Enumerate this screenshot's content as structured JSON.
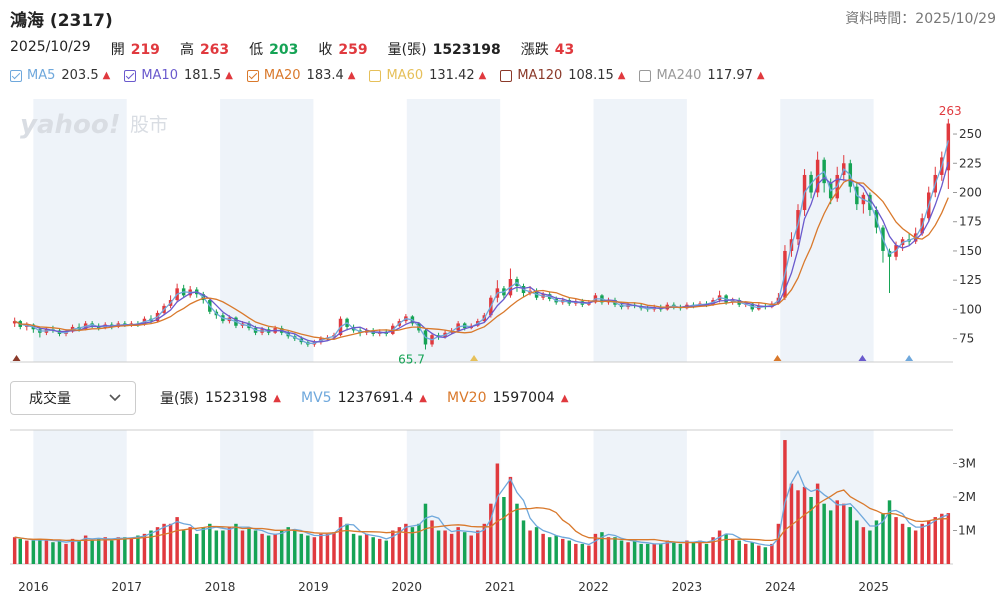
{
  "header": {
    "title": "鴻海 (2317)",
    "data_time_label": "資料時間：2025/10/29"
  },
  "quote": {
    "date": "2025/10/29",
    "open_label": "開",
    "open": "219",
    "high_label": "高",
    "high": "263",
    "low_label": "低",
    "low": "203",
    "close_label": "收",
    "close": "259",
    "volume_label": "量(張)",
    "volume": "1523198",
    "change_label": "漲跌",
    "change": "43"
  },
  "ma": [
    {
      "name": "MA5",
      "value": "203.5",
      "color": "#6fa8dc",
      "checked": true
    },
    {
      "name": "MA10",
      "value": "181.5",
      "color": "#6a5acd",
      "checked": true
    },
    {
      "name": "MA20",
      "value": "183.4",
      "color": "#d9792c",
      "checked": true
    },
    {
      "name": "MA60",
      "value": "131.42",
      "color": "#e6c05a",
      "checked": false
    },
    {
      "name": "MA120",
      "value": "108.15",
      "color": "#8b3a2a",
      "checked": false
    },
    {
      "name": "MA240",
      "value": "117.97",
      "color": "#999999",
      "checked": false
    }
  ],
  "up_arrow": "▲",
  "volume_panel": {
    "select_label": "成交量",
    "vol_label": "量(張)",
    "vol_value": "1523198",
    "mv5_label": "MV5",
    "mv5_value": "1237691.4",
    "mv5_color": "#6fa8dc",
    "mv20_label": "MV20",
    "mv20_value": "1597004",
    "mv20_color": "#d9792c"
  },
  "watermark": {
    "brand": "yahoo!",
    "suffix": "股市"
  },
  "colors": {
    "up": "#e0393e",
    "down": "#15a355",
    "band": "#eef3f9"
  },
  "chart_data": {
    "type": "candlestick",
    "title": "鴻海 (2317)",
    "price_axis": {
      "ticks": [
        75,
        100,
        125,
        150,
        175,
        200,
        225,
        250
      ],
      "ylim": [
        55,
        268
      ]
    },
    "volume_axis": {
      "ticks": [
        "1M",
        "2M",
        "3M"
      ],
      "tick_values": [
        1,
        2,
        3
      ],
      "ylim": [
        0,
        4.0
      ],
      "unit": "M"
    },
    "x_tick_labels": [
      "2016",
      "2017",
      "2018",
      "2019",
      "2020",
      "2021",
      "2022",
      "2023",
      "2024",
      "2025"
    ],
    "x_tick_positions": [
      2016,
      2017,
      2018,
      2019,
      2020,
      2021,
      2022,
      2023,
      2024,
      2025
    ],
    "xlim": [
      2015.75,
      2025.85
    ],
    "annotations": [
      {
        "text": "263",
        "x": 2025.82,
        "y": 263,
        "color": "#e0393e"
      },
      {
        "text": "65.7",
        "x": 2020.05,
        "y": 65.7,
        "color": "#15a355"
      }
    ],
    "markers": [
      {
        "x": 2015.82,
        "color": "#8b3a2a"
      },
      {
        "x": 2020.72,
        "color": "#e6c05a"
      },
      {
        "x": 2023.97,
        "color": "#d9792c"
      },
      {
        "x": 2024.88,
        "color": "#6a5acd"
      },
      {
        "x": 2025.38,
        "color": "#6fa8dc"
      }
    ],
    "candles": [
      [
        2015.8,
        88,
        90,
        93,
        85,
        0.8
      ],
      [
        2015.86,
        90,
        85,
        91,
        83,
        0.75
      ],
      [
        2015.93,
        85,
        87,
        89,
        82,
        0.7
      ],
      [
        2016.0,
        87,
        83,
        88,
        80,
        0.7
      ],
      [
        2016.07,
        83,
        80,
        85,
        76,
        0.75
      ],
      [
        2016.14,
        80,
        83,
        85,
        78,
        0.7
      ],
      [
        2016.21,
        83,
        82,
        86,
        80,
        0.65
      ],
      [
        2016.28,
        82,
        79,
        84,
        77,
        0.7
      ],
      [
        2016.35,
        79,
        81,
        83,
        77,
        0.6
      ],
      [
        2016.42,
        81,
        85,
        87,
        80,
        0.75
      ],
      [
        2016.49,
        85,
        83,
        88,
        81,
        0.7
      ],
      [
        2016.56,
        83,
        88,
        90,
        82,
        0.85
      ],
      [
        2016.63,
        88,
        86,
        90,
        84,
        0.7
      ],
      [
        2016.7,
        86,
        84,
        88,
        82,
        0.75
      ],
      [
        2016.77,
        84,
        87,
        89,
        83,
        0.8
      ],
      [
        2016.84,
        87,
        85,
        89,
        83,
        0.7
      ],
      [
        2016.91,
        85,
        88,
        90,
        84,
        0.8
      ],
      [
        2016.98,
        88,
        86,
        90,
        85,
        0.8
      ],
      [
        2017.05,
        86,
        88,
        90,
        85,
        0.75
      ],
      [
        2017.12,
        88,
        87,
        90,
        85,
        0.85
      ],
      [
        2017.19,
        87,
        92,
        94,
        86,
        0.9
      ],
      [
        2017.26,
        92,
        90,
        95,
        88,
        1.0
      ],
      [
        2017.33,
        90,
        97,
        99,
        89,
        1.1
      ],
      [
        2017.4,
        97,
        103,
        105,
        95,
        1.2
      ],
      [
        2017.47,
        103,
        108,
        112,
        101,
        1.2
      ],
      [
        2017.54,
        108,
        118,
        122,
        106,
        1.4
      ],
      [
        2017.61,
        118,
        112,
        121,
        110,
        1.0
      ],
      [
        2017.68,
        112,
        117,
        120,
        110,
        1.1
      ],
      [
        2017.75,
        117,
        113,
        119,
        110,
        0.9
      ],
      [
        2017.82,
        113,
        108,
        115,
        105,
        1.1
      ],
      [
        2017.89,
        108,
        98,
        110,
        96,
        1.2
      ],
      [
        2017.96,
        98,
        95,
        100,
        92,
        1.0
      ],
      [
        2018.03,
        95,
        90,
        97,
        88,
        1.0
      ],
      [
        2018.1,
        90,
        93,
        95,
        88,
        1.1
      ],
      [
        2018.17,
        93,
        86,
        94,
        84,
        1.2
      ],
      [
        2018.24,
        86,
        88,
        90,
        84,
        1.0
      ],
      [
        2018.31,
        88,
        84,
        90,
        82,
        1.1
      ],
      [
        2018.38,
        84,
        80,
        86,
        78,
        1.0
      ],
      [
        2018.45,
        80,
        83,
        85,
        78,
        0.9
      ],
      [
        2018.52,
        83,
        80,
        85,
        78,
        0.85
      ],
      [
        2018.59,
        80,
        84,
        86,
        79,
        0.9
      ],
      [
        2018.66,
        84,
        80,
        86,
        78,
        1.0
      ],
      [
        2018.73,
        80,
        77,
        82,
        75,
        1.1
      ],
      [
        2018.8,
        77,
        75,
        79,
        73,
        1.0
      ],
      [
        2018.87,
        75,
        72,
        77,
        70,
        0.9
      ],
      [
        2018.94,
        72,
        70,
        74,
        68,
        0.85
      ],
      [
        2019.01,
        70,
        72,
        74,
        68,
        0.8
      ],
      [
        2019.08,
        72,
        75,
        77,
        70,
        0.9
      ],
      [
        2019.15,
        75,
        76,
        78,
        73,
        0.9
      ],
      [
        2019.22,
        76,
        78,
        80,
        75,
        0.95
      ],
      [
        2019.29,
        78,
        92,
        94,
        77,
        1.4
      ],
      [
        2019.36,
        92,
        85,
        93,
        82,
        1.2
      ],
      [
        2019.43,
        85,
        82,
        87,
        80,
        0.9
      ],
      [
        2019.5,
        82,
        80,
        84,
        77,
        0.85
      ],
      [
        2019.57,
        80,
        82,
        84,
        78,
        0.9
      ],
      [
        2019.64,
        82,
        79,
        84,
        77,
        0.8
      ],
      [
        2019.71,
        79,
        81,
        83,
        77,
        0.75
      ],
      [
        2019.78,
        81,
        79,
        83,
        77,
        0.7
      ],
      [
        2019.85,
        79,
        86,
        88,
        78,
        1.0
      ],
      [
        2019.92,
        86,
        90,
        92,
        85,
        1.1
      ],
      [
        2019.99,
        90,
        94,
        96,
        88,
        1.2
      ],
      [
        2020.06,
        94,
        88,
        95,
        86,
        1.1
      ],
      [
        2020.13,
        88,
        82,
        89,
        80,
        1.2
      ],
      [
        2020.2,
        82,
        70,
        83,
        65.7,
        1.8
      ],
      [
        2020.27,
        70,
        78,
        80,
        68,
        1.3
      ],
      [
        2020.34,
        78,
        76,
        80,
        74,
        1.0
      ],
      [
        2020.41,
        76,
        80,
        82,
        75,
        1.0
      ],
      [
        2020.48,
        80,
        82,
        84,
        79,
        0.9
      ],
      [
        2020.55,
        82,
        88,
        90,
        81,
        1.1
      ],
      [
        2020.62,
        88,
        84,
        89,
        82,
        0.95
      ],
      [
        2020.69,
        84,
        86,
        88,
        83,
        0.85
      ],
      [
        2020.76,
        86,
        90,
        92,
        85,
        1.0
      ],
      [
        2020.83,
        90,
        95,
        97,
        89,
        1.2
      ],
      [
        2020.9,
        95,
        110,
        112,
        93,
        1.8
      ],
      [
        2020.97,
        110,
        118,
        125,
        106,
        3.0
      ],
      [
        2021.04,
        118,
        112,
        120,
        109,
        2.0
      ],
      [
        2021.11,
        112,
        126,
        135,
        110,
        2.6
      ],
      [
        2021.18,
        126,
        120,
        128,
        115,
        1.8
      ],
      [
        2021.25,
        120,
        114,
        122,
        111,
        1.3
      ],
      [
        2021.32,
        114,
        116,
        120,
        112,
        1.0
      ],
      [
        2021.39,
        116,
        110,
        118,
        108,
        1.1
      ],
      [
        2021.46,
        110,
        113,
        115,
        108,
        0.9
      ],
      [
        2021.53,
        113,
        109,
        115,
        107,
        0.8
      ],
      [
        2021.6,
        109,
        106,
        111,
        104,
        0.85
      ],
      [
        2021.67,
        106,
        108,
        110,
        104,
        0.75
      ],
      [
        2021.74,
        108,
        105,
        110,
        103,
        0.7
      ],
      [
        2021.81,
        105,
        107,
        109,
        103,
        0.6
      ],
      [
        2021.88,
        107,
        104,
        109,
        102,
        0.6
      ],
      [
        2021.95,
        104,
        106,
        108,
        103,
        0.55
      ],
      [
        2022.02,
        106,
        112,
        114,
        105,
        0.9
      ],
      [
        2022.09,
        112,
        106,
        113,
        104,
        0.95
      ],
      [
        2022.16,
        106,
        108,
        110,
        104,
        0.8
      ],
      [
        2022.23,
        108,
        104,
        110,
        102,
        0.8
      ],
      [
        2022.3,
        104,
        102,
        106,
        100,
        0.7
      ],
      [
        2022.37,
        102,
        104,
        106,
        100,
        0.65
      ],
      [
        2022.44,
        104,
        103,
        106,
        101,
        0.7
      ],
      [
        2022.51,
        103,
        101,
        105,
        99,
        0.6
      ],
      [
        2022.58,
        101,
        100,
        103,
        98,
        0.6
      ],
      [
        2022.65,
        100,
        102,
        104,
        98,
        0.6
      ],
      [
        2022.72,
        102,
        100,
        104,
        98,
        0.6
      ],
      [
        2022.79,
        100,
        104,
        106,
        99,
        0.7
      ],
      [
        2022.86,
        104,
        102,
        106,
        100,
        0.65
      ],
      [
        2022.93,
        102,
        101,
        104,
        99,
        0.6
      ],
      [
        2023.0,
        101,
        104,
        106,
        100,
        0.7
      ],
      [
        2023.07,
        104,
        103,
        106,
        101,
        0.65
      ],
      [
        2023.14,
        103,
        105,
        107,
        102,
        0.7
      ],
      [
        2023.21,
        105,
        104,
        107,
        102,
        0.6
      ],
      [
        2023.28,
        104,
        108,
        110,
        103,
        0.8
      ],
      [
        2023.35,
        108,
        112,
        116,
        106,
        1.0
      ],
      [
        2023.42,
        112,
        106,
        113,
        104,
        0.9
      ],
      [
        2023.49,
        106,
        108,
        110,
        104,
        0.75
      ],
      [
        2023.56,
        108,
        104,
        110,
        102,
        0.7
      ],
      [
        2023.63,
        104,
        105,
        107,
        102,
        0.6
      ],
      [
        2023.7,
        105,
        100,
        106,
        98,
        0.65
      ],
      [
        2023.77,
        100,
        103,
        105,
        99,
        0.55
      ],
      [
        2023.84,
        103,
        102,
        105,
        100,
        0.5
      ],
      [
        2023.91,
        102,
        105,
        107,
        101,
        0.6
      ],
      [
        2023.98,
        105,
        110,
        114,
        104,
        1.2
      ],
      [
        2024.05,
        110,
        150,
        155,
        108,
        3.7
      ],
      [
        2024.12,
        150,
        160,
        166,
        145,
        2.4
      ],
      [
        2024.19,
        160,
        185,
        190,
        155,
        2.2
      ],
      [
        2024.26,
        185,
        215,
        220,
        180,
        2.3
      ],
      [
        2024.33,
        215,
        200,
        218,
        195,
        2.0
      ],
      [
        2024.4,
        200,
        228,
        235,
        196,
        2.4
      ],
      [
        2024.47,
        228,
        208,
        230,
        200,
        1.8
      ],
      [
        2024.54,
        208,
        195,
        212,
        190,
        1.6
      ],
      [
        2024.61,
        195,
        215,
        222,
        192,
        1.9
      ],
      [
        2024.68,
        215,
        225,
        232,
        210,
        1.8
      ],
      [
        2024.75,
        225,
        205,
        228,
        200,
        1.7
      ],
      [
        2024.82,
        205,
        190,
        208,
        185,
        1.3
      ],
      [
        2024.89,
        190,
        198,
        200,
        182,
        1.1
      ],
      [
        2024.96,
        198,
        185,
        200,
        180,
        1.0
      ],
      [
        2025.03,
        185,
        170,
        188,
        165,
        1.3
      ],
      [
        2025.1,
        170,
        150,
        172,
        140,
        1.5
      ],
      [
        2025.17,
        150,
        145,
        152,
        114,
        1.9
      ],
      [
        2025.24,
        145,
        155,
        158,
        142,
        1.4
      ],
      [
        2025.31,
        155,
        160,
        162,
        150,
        1.2
      ],
      [
        2025.38,
        160,
        158,
        165,
        155,
        1.1
      ],
      [
        2025.45,
        158,
        165,
        170,
        156,
        1.0
      ],
      [
        2025.52,
        165,
        178,
        182,
        163,
        1.2
      ],
      [
        2025.59,
        178,
        200,
        205,
        175,
        1.3
      ],
      [
        2025.66,
        200,
        215,
        222,
        196,
        1.4
      ],
      [
        2025.73,
        215,
        230,
        235,
        210,
        1.5
      ],
      [
        2025.8,
        219,
        259,
        263,
        203,
        1.52
      ]
    ]
  }
}
